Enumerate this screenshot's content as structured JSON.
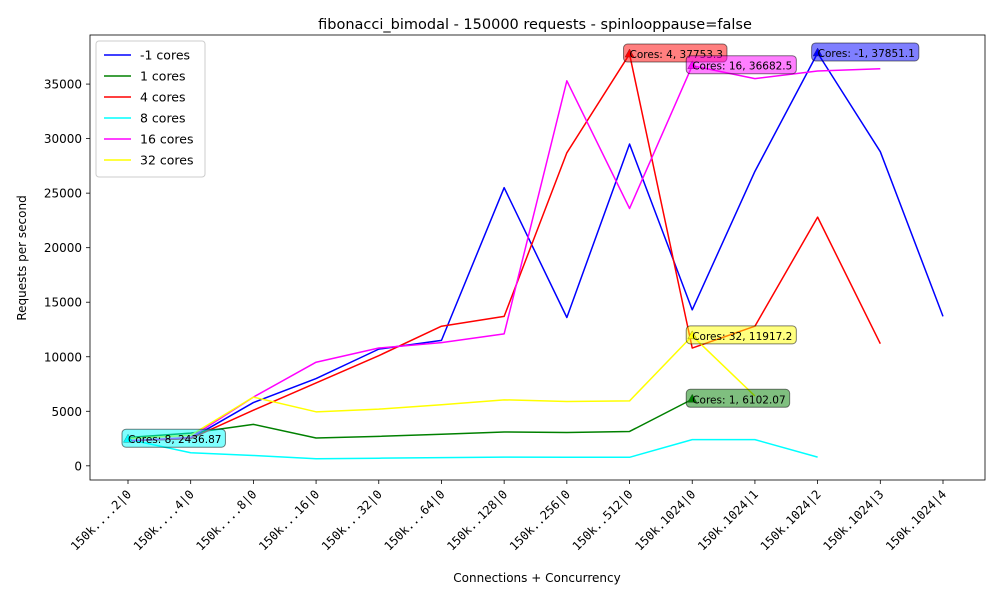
{
  "chart_data": {
    "type": "line",
    "title": "fibonacci_bimodal - 150000 requests - spinlooppause=false",
    "xlabel": "Connections + Concurrency",
    "ylabel": "Requests per second",
    "categories": [
      "150k....2|0",
      "150k....4|0",
      "150k....8|0",
      "150k...16|0",
      "150k...32|0",
      "150k...64|0",
      "150k..128|0",
      "150k..256|0",
      "150k..512|0",
      "150k.1024|0",
      "150k.1024|1",
      "150k.1024|2",
      "150k.1024|3",
      "150k.1024|4"
    ],
    "ylim": [
      -1300,
      39500
    ],
    "yticks": [
      0,
      5000,
      10000,
      15000,
      20000,
      25000,
      30000,
      35000
    ],
    "ytick_labels": [
      "0",
      "5000",
      "10000",
      "15000",
      "20000",
      "25000",
      "30000",
      "35000"
    ],
    "grid": false,
    "legend_position": "top-left",
    "series": [
      {
        "name": "-1 cores",
        "color": "#0000ff",
        "values": [
          2300,
          2500,
          5800,
          8000,
          10700,
          11500,
          25500,
          13600,
          29500,
          14300,
          27000,
          37851.1,
          28800,
          13700
        ]
      },
      {
        "name": "1 cores",
        "color": "#008000",
        "values": [
          2600,
          3000,
          3800,
          2550,
          2700,
          2900,
          3100,
          3050,
          3150,
          6102.07,
          null,
          null,
          null,
          null
        ]
      },
      {
        "name": "4 cores",
        "color": "#ff0000",
        "values": [
          2300,
          2500,
          5100,
          7600,
          10100,
          12800,
          13700,
          28700,
          37753.3,
          10800,
          12800,
          22800,
          11200,
          null
        ]
      },
      {
        "name": "8 cores",
        "color": "#00ffff",
        "values": [
          2436.87,
          1200,
          950,
          650,
          700,
          750,
          800,
          780,
          780,
          2400,
          2400,
          800,
          null,
          null
        ]
      },
      {
        "name": "16 cores",
        "color": "#ff00ff",
        "values": [
          2300,
          2600,
          6300,
          9500,
          10800,
          11300,
          12100,
          35300,
          23600,
          36682.5,
          35500,
          36200,
          36400,
          null
        ]
      },
      {
        "name": "32 cores",
        "color": "#ffff00",
        "values": [
          2500,
          2800,
          6300,
          4950,
          5200,
          5600,
          6050,
          5900,
          5950,
          11917.2,
          6400,
          null,
          null,
          null
        ]
      }
    ],
    "annotations": [
      {
        "text": "Cores: 8, 2436.87",
        "x_index": 0,
        "y": 2436.87,
        "color": "#00ffff"
      },
      {
        "text": "Cores: 4, 37753.3",
        "x_index": 8,
        "y": 37753.3,
        "color": "#ff0000"
      },
      {
        "text": "Cores: 16, 36682.5",
        "x_index": 9,
        "y": 36682.5,
        "color": "#ff00ff"
      },
      {
        "text": "Cores: 32, 11917.2",
        "x_index": 9,
        "y": 11917.2,
        "color": "#ffff00"
      },
      {
        "text": "Cores: 1, 6102.07",
        "x_index": 9,
        "y": 6102.07,
        "color": "#008000"
      },
      {
        "text": "Cores: -1, 37851.1",
        "x_index": 11,
        "y": 37851.1,
        "color": "#0000ff"
      }
    ]
  }
}
